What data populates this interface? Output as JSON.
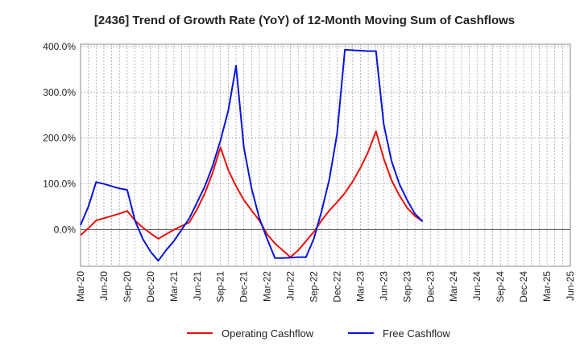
{
  "chart_data": {
    "type": "line",
    "title": "[2436]  Trend of Growth Rate (YoY) of 12-Month Moving Sum of Cashflows",
    "xlabel": "",
    "ylabel": "",
    "x_labels": [
      "Mar-20",
      "Jun-20",
      "Sep-20",
      "Dec-20",
      "Mar-21",
      "Jun-21",
      "Sep-21",
      "Dec-21",
      "Mar-22",
      "Jun-22",
      "Sep-22",
      "Dec-22",
      "Mar-23",
      "Jun-23",
      "Sep-23",
      "Dec-23",
      "Mar-24",
      "Jun-24",
      "Sep-24",
      "Dec-24",
      "Mar-25",
      "Jun-25"
    ],
    "y_ticks": [
      0,
      100,
      200,
      300,
      400
    ],
    "y_tick_labels": [
      "0.0%",
      "100.0%",
      "200.0%",
      "300.0%",
      "400.0%"
    ],
    "ylim": [
      -80,
      405
    ],
    "grid": true,
    "legend_position": "bottom",
    "series": [
      {
        "name": "Operating Cashflow",
        "color": "#e8120c",
        "values": [
          -12,
          3,
          20,
          25,
          30,
          35,
          41,
          20,
          5,
          -8,
          -20,
          -10,
          0,
          8,
          16,
          45,
          80,
          125,
          180,
          130,
          95,
          65,
          42,
          20,
          -10,
          -30,
          -45,
          -60,
          -45,
          -25,
          -5,
          20,
          42,
          60,
          80,
          105,
          135,
          170,
          215,
          155,
          108,
          75,
          48,
          30,
          18
        ]
      },
      {
        "name": "Free Cashflow",
        "color": "#0a14d8",
        "values": [
          10,
          50,
          104,
          100,
          95,
          90,
          87,
          20,
          -20,
          -48,
          -68,
          -45,
          -25,
          0,
          25,
          60,
          95,
          140,
          195,
          260,
          358,
          180,
          90,
          25,
          -20,
          -62,
          -62,
          -61,
          -60,
          -60,
          -20,
          40,
          110,
          210,
          393,
          392,
          391,
          390,
          390,
          230,
          150,
          100,
          65,
          35,
          18
        ]
      }
    ]
  }
}
